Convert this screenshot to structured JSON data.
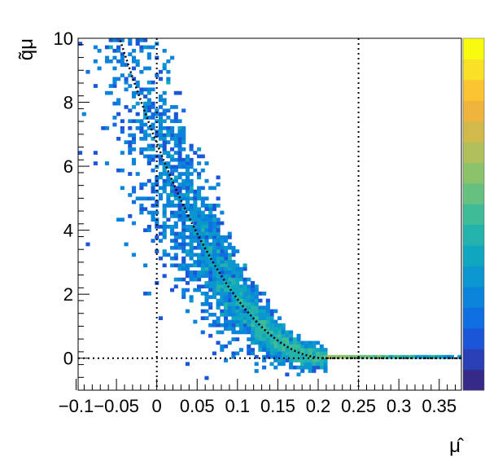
{
  "chart_data": {
    "type": "heatmap",
    "xlabel": "μ̂",
    "ylabel": "q̃μ",
    "xlim": [
      -0.0975,
      0.3775
    ],
    "ylim": [
      -1,
      10
    ],
    "x_ticks": [
      "−0.1",
      "−0.05",
      "0",
      "0.05",
      "0.1",
      "0.15",
      "0.2",
      "0.25",
      "0.3",
      "0.35"
    ],
    "x_tick_values": [
      -0.1,
      -0.05,
      0,
      0.05,
      0.1,
      0.15,
      0.2,
      0.25,
      0.3,
      0.35
    ],
    "y_ticks": [
      "0",
      "2",
      "4",
      "6",
      "8",
      "10"
    ],
    "y_tick_values": [
      0,
      2,
      4,
      6,
      8,
      10
    ],
    "reference_lines": {
      "vertical_x": [
        0,
        0.25
      ],
      "horizontal_y": [
        0
      ]
    },
    "asymptotic_curve": {
      "description": "q̃μ = ((μ̂ − 0.21)/0.081)^2 for μ̂ < 0.21, else 0",
      "mu_test": 0.21,
      "sigma": 0.081
    },
    "grid": false,
    "legend": "none",
    "colorbar": {
      "palette": [
        "#352a87",
        "#2a3fb4",
        "#1b56d8",
        "#0f6ee2",
        "#0a84da",
        "#0c96cf",
        "#0fa6c0",
        "#24b2ac",
        "#3fbb98",
        "#66c180",
        "#8cc26a",
        "#b0bf5a",
        "#d2b94c",
        "#eeb43c",
        "#fcc430",
        "#f9e125",
        "#f9fb0e"
      ]
    }
  }
}
